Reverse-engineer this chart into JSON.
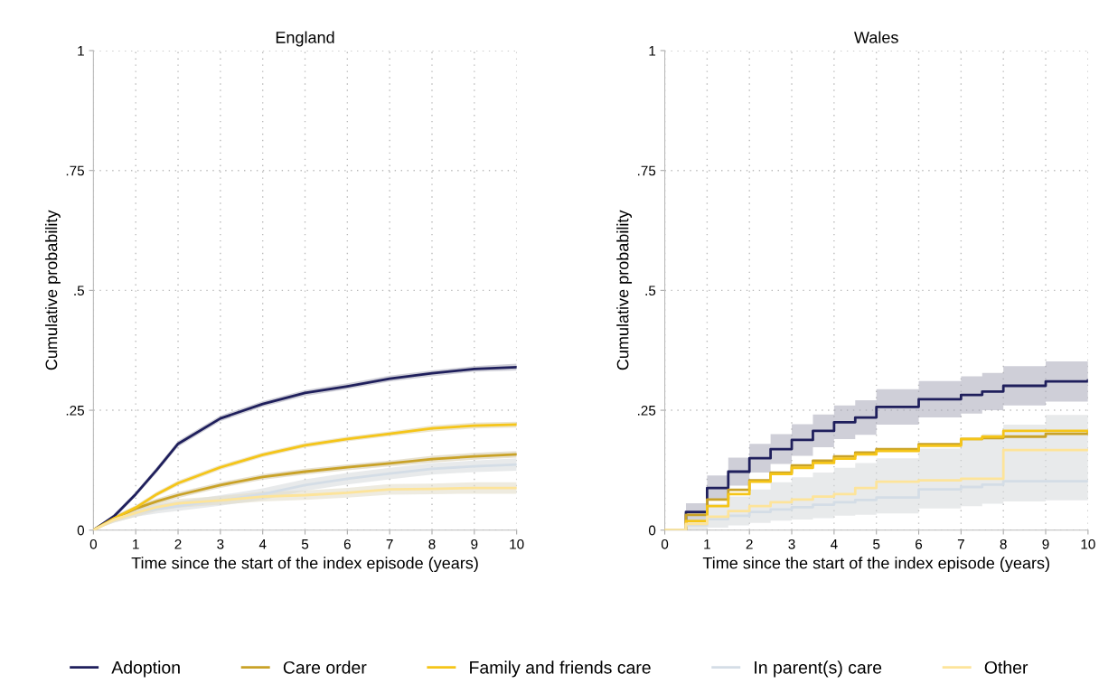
{
  "chart_data": [
    {
      "type": "line",
      "title": "England",
      "xlabel": "Time since the start of the index episode (years)",
      "ylabel": "Cumulative probability",
      "x": [
        0,
        0.5,
        1,
        1.5,
        2,
        3,
        4,
        5,
        6,
        7,
        8,
        9,
        10
      ],
      "xlim": [
        0,
        10
      ],
      "xticks": [
        0,
        1,
        2,
        3,
        4,
        5,
        6,
        7,
        8,
        9,
        10
      ],
      "ylim": [
        0,
        1
      ],
      "yticks": [
        {
          "value": 0,
          "label": "0"
        },
        {
          "value": 0.25,
          "label": ".25"
        },
        {
          "value": 0.5,
          "label": ".5"
        },
        {
          "value": 0.75,
          "label": ".75"
        },
        {
          "value": 1,
          "label": "1"
        }
      ],
      "grid": true,
      "legend": "bottom",
      "series": [
        {
          "name": "Adoption",
          "color": "#1f1f5c",
          "values": [
            0,
            0.03,
            0.075,
            0.126,
            0.18,
            0.233,
            0.263,
            0.286,
            0.3,
            0.316,
            0.327,
            0.336,
            0.34
          ],
          "lower": [
            0,
            0.025,
            0.07,
            0.12,
            0.174,
            0.227,
            0.257,
            0.28,
            0.294,
            0.31,
            0.321,
            0.33,
            0.333
          ],
          "upper": [
            0,
            0.035,
            0.08,
            0.132,
            0.186,
            0.239,
            0.269,
            0.292,
            0.306,
            0.322,
            0.333,
            0.342,
            0.347
          ]
        },
        {
          "name": "Care order",
          "color": "#c9a227",
          "values": [
            0,
            0.025,
            0.045,
            0.06,
            0.073,
            0.094,
            0.111,
            0.122,
            0.131,
            0.139,
            0.148,
            0.154,
            0.158
          ],
          "lower": [
            0,
            0.02,
            0.04,
            0.054,
            0.067,
            0.088,
            0.105,
            0.116,
            0.125,
            0.133,
            0.141,
            0.147,
            0.151
          ],
          "upper": [
            0,
            0.03,
            0.05,
            0.066,
            0.079,
            0.1,
            0.117,
            0.128,
            0.137,
            0.145,
            0.155,
            0.161,
            0.165
          ]
        },
        {
          "name": "Family and friends care",
          "color": "#f5c518",
          "values": [
            0,
            0.025,
            0.047,
            0.075,
            0.098,
            0.131,
            0.157,
            0.177,
            0.19,
            0.201,
            0.212,
            0.218,
            0.22
          ],
          "lower": [
            0,
            0.02,
            0.042,
            0.07,
            0.093,
            0.126,
            0.152,
            0.172,
            0.185,
            0.196,
            0.206,
            0.212,
            0.214
          ],
          "upper": [
            0,
            0.03,
            0.052,
            0.08,
            0.103,
            0.136,
            0.162,
            0.182,
            0.195,
            0.206,
            0.218,
            0.224,
            0.226
          ]
        },
        {
          "name": "In parent(s) care",
          "color": "#d4dde6",
          "values": [
            0,
            0.022,
            0.036,
            0.044,
            0.05,
            0.062,
            0.075,
            0.094,
            0.107,
            0.118,
            0.128,
            0.133,
            0.137
          ],
          "lower": [
            0,
            0.016,
            0.028,
            0.035,
            0.04,
            0.051,
            0.063,
            0.082,
            0.095,
            0.106,
            0.116,
            0.121,
            0.124
          ],
          "upper": [
            0,
            0.028,
            0.044,
            0.053,
            0.06,
            0.073,
            0.087,
            0.106,
            0.119,
            0.13,
            0.14,
            0.145,
            0.15
          ]
        },
        {
          "name": "Other",
          "color": "#fde49a",
          "values": [
            0,
            0.022,
            0.036,
            0.048,
            0.056,
            0.062,
            0.07,
            0.073,
            0.078,
            0.085,
            0.086,
            0.088,
            0.088
          ],
          "lower": [
            0,
            0.016,
            0.028,
            0.04,
            0.047,
            0.053,
            0.06,
            0.063,
            0.068,
            0.074,
            0.075,
            0.076,
            0.076
          ],
          "upper": [
            0,
            0.028,
            0.044,
            0.056,
            0.065,
            0.071,
            0.08,
            0.083,
            0.088,
            0.096,
            0.097,
            0.1,
            0.1
          ]
        }
      ]
    },
    {
      "type": "step",
      "title": "Wales",
      "xlabel": "Time since the start of the index episode (years)",
      "ylabel": "Cumulative probability",
      "x": [
        0,
        0.5,
        1,
        1.5,
        2,
        2.5,
        3,
        3.5,
        4,
        4.5,
        5,
        6,
        7,
        7.5,
        8,
        9,
        10
      ],
      "xlim": [
        0,
        10
      ],
      "xticks": [
        0,
        1,
        2,
        3,
        4,
        5,
        6,
        7,
        8,
        9,
        10
      ],
      "ylim": [
        0,
        1
      ],
      "yticks": [
        {
          "value": 0,
          "label": "0"
        },
        {
          "value": 0.25,
          "label": ".25"
        },
        {
          "value": 0.5,
          "label": ".5"
        },
        {
          "value": 0.75,
          "label": ".75"
        },
        {
          "value": 1,
          "label": "1"
        }
      ],
      "grid": true,
      "series": [
        {
          "color": "#1f1f5c",
          "values": [
            0,
            0.038,
            0.088,
            0.122,
            0.15,
            0.169,
            0.188,
            0.207,
            0.225,
            0.235,
            0.257,
            0.273,
            0.282,
            0.289,
            0.301,
            0.31,
            0.312
          ],
          "lower": [
            0,
            0.02,
            0.062,
            0.093,
            0.12,
            0.138,
            0.155,
            0.173,
            0.19,
            0.199,
            0.22,
            0.235,
            0.243,
            0.25,
            0.26,
            0.268,
            0.27
          ],
          "upper": [
            0,
            0.056,
            0.114,
            0.151,
            0.18,
            0.2,
            0.221,
            0.241,
            0.26,
            0.271,
            0.294,
            0.311,
            0.321,
            0.328,
            0.342,
            0.352,
            0.355
          ]
        },
        {
          "color": "#c9a227",
          "values": [
            0,
            0.032,
            0.064,
            0.084,
            0.104,
            0.12,
            0.135,
            0.145,
            0.154,
            0.162,
            0.169,
            0.179,
            0.19,
            0.192,
            0.195,
            0.201,
            0.205
          ]
        },
        {
          "color": "#f5c518",
          "values": [
            0,
            0.019,
            0.05,
            0.075,
            0.101,
            0.117,
            0.13,
            0.14,
            0.149,
            0.158,
            0.165,
            0.176,
            0.19,
            0.195,
            0.207,
            0.207,
            0.205
          ]
        },
        {
          "color": "#d4dde6",
          "values": [
            0,
            0.01,
            0.023,
            0.03,
            0.038,
            0.043,
            0.048,
            0.053,
            0.058,
            0.063,
            0.068,
            0.085,
            0.09,
            0.095,
            0.102,
            0.102,
            0.102
          ],
          "lower": [
            0,
            0.0,
            0.005,
            0.01,
            0.015,
            0.02,
            0.022,
            0.025,
            0.03,
            0.032,
            0.035,
            0.045,
            0.05,
            0.055,
            0.06,
            0.062,
            0.064
          ],
          "upper": [
            0,
            0.03,
            0.055,
            0.07,
            0.085,
            0.1,
            0.11,
            0.12,
            0.13,
            0.14,
            0.15,
            0.17,
            0.19,
            0.2,
            0.22,
            0.24,
            0.25
          ]
        },
        {
          "color": "#fde49a",
          "values": [
            0,
            0.013,
            0.028,
            0.04,
            0.05,
            0.058,
            0.064,
            0.07,
            0.075,
            0.088,
            0.101,
            0.104,
            0.107,
            0.107,
            0.167,
            0.167,
            0.167
          ]
        }
      ]
    }
  ]
}
